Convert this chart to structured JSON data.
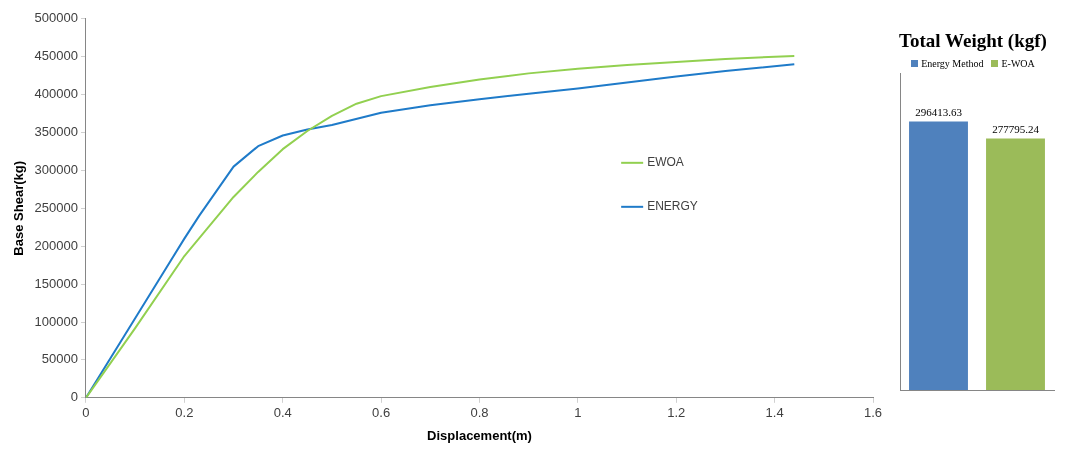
{
  "chart_data": [
    {
      "type": "line",
      "xlabel": "Displacement(m)",
      "ylabel": "Base Shear(kg)",
      "xlim": [
        0,
        1.6
      ],
      "xticks": [
        0,
        0.2,
        0.4,
        0.6,
        0.8,
        1,
        1.2,
        1.4,
        1.6
      ],
      "ylim": [
        0,
        500000
      ],
      "yticks": [
        0,
        50000,
        100000,
        150000,
        200000,
        250000,
        300000,
        350000,
        400000,
        450000,
        500000
      ],
      "grid": false,
      "legend": "center",
      "marker": "none",
      "series": [
        {
          "name": "EWOA",
          "color": "#92d050",
          "x": [
            0,
            0.1,
            0.2,
            0.3,
            0.35,
            0.4,
            0.45,
            0.5,
            0.55,
            0.6,
            0.7,
            0.8,
            0.9,
            1.0,
            1.1,
            1.2,
            1.3,
            1.44
          ],
          "values": [
            0,
            92000,
            187000,
            265000,
            298000,
            328000,
            352000,
            372000,
            388000,
            398000,
            410000,
            420000,
            428000,
            434000,
            439000,
            443000,
            447000,
            451000
          ]
        },
        {
          "name": "ENERGY",
          "color": "#1f7bc9",
          "x": [
            0,
            0.1,
            0.2,
            0.23,
            0.3,
            0.35,
            0.4,
            0.45,
            0.5,
            0.6,
            0.7,
            0.8,
            0.9,
            1.0,
            1.1,
            1.2,
            1.3,
            1.44
          ],
          "values": [
            0,
            105000,
            210000,
            240000,
            305000,
            332000,
            346000,
            354000,
            360000,
            376000,
            386000,
            394000,
            401000,
            408000,
            416000,
            424000,
            431000,
            440000
          ]
        }
      ]
    },
    {
      "type": "bar",
      "title": "Total Weight (kgf)",
      "categories": [
        "Energy Method",
        "E-WOA"
      ],
      "tick_labels": false,
      "data_labels": true,
      "values": [
        296413.63,
        277795.24
      ],
      "colors": [
        "#4f81bd",
        "#9bbb59"
      ]
    }
  ]
}
